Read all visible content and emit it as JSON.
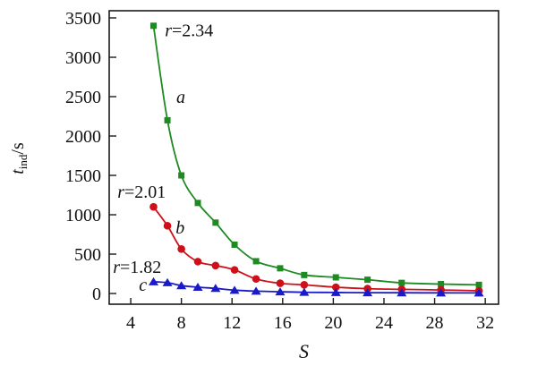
{
  "chart_data": {
    "type": "line",
    "title": "",
    "xlabel": "S",
    "ylabel": {
      "base": "t",
      "sub": "ind",
      "suffix": "/s"
    },
    "xlim": [
      2.3,
      33.05
    ],
    "ylim": [
      -136,
      3591
    ],
    "x_ticks": [
      4,
      8,
      12,
      16,
      20,
      24,
      28,
      32
    ],
    "y_ticks": [
      0,
      500,
      1000,
      1500,
      2000,
      2500,
      3000,
      3500
    ],
    "grid": false,
    "legend": "none (inline annotations)",
    "background": "#ffffff",
    "axis_color": "#1a1a1a",
    "x": [
      5.8,
      6.9,
      8.0,
      9.3,
      10.7,
      12.2,
      13.9,
      15.8,
      17.7,
      20.2,
      22.7,
      25.4,
      28.5,
      31.5
    ],
    "series": [
      {
        "name": "a",
        "marker": "square",
        "color": "#1e8a22",
        "values": [
          3400,
          2200,
          1500,
          1150,
          900,
          620,
          410,
          320,
          235,
          205,
          175,
          135,
          120,
          110
        ],
        "annotation": {
          "italic": "r",
          "text": "=2.34",
          "x": 6.7,
          "y": 3270
        },
        "letter": {
          "text": "a",
          "x": 7.6,
          "y": 2420
        }
      },
      {
        "name": "b",
        "marker": "circle",
        "color": "#d01018",
        "values": [
          1100,
          860,
          565,
          405,
          355,
          300,
          185,
          130,
          110,
          80,
          62,
          53,
          45,
          34
        ],
        "annotation": {
          "italic": "r",
          "text": "=2.01",
          "x": 2.95,
          "y": 1215
        },
        "letter": {
          "text": "b",
          "x": 7.55,
          "y": 760
        }
      },
      {
        "name": "c",
        "marker": "triangle",
        "color": "#1a1ac8",
        "values": [
          150,
          138,
          100,
          80,
          65,
          42,
          30,
          22,
          16,
          13,
          11,
          9,
          8,
          7
        ],
        "annotation": {
          "italic": "r",
          "text": "=1.82",
          "x": 2.6,
          "y": 260
        },
        "letter": {
          "text": "c",
          "x": 4.65,
          "y": 35
        }
      }
    ]
  }
}
